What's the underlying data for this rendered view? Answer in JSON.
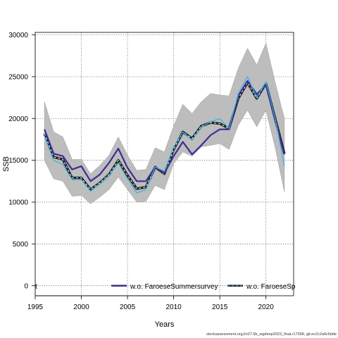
{
  "chart_data": {
    "type": "line",
    "title": "",
    "xlabel": "Years",
    "ylabel": "SSB",
    "xlim": [
      1995,
      2023
    ],
    "ylim": [
      -1200,
      30300
    ],
    "xticks": [
      1995,
      2000,
      2005,
      2010,
      2015,
      2020
    ],
    "yticks": [
      0,
      5000,
      10000,
      15000,
      20000,
      25000,
      30000
    ],
    "grid": true,
    "legend_position": "bottom",
    "legend_partial_label": "t",
    "x": [
      1996,
      1997,
      1998,
      1999,
      2000,
      2001,
      2002,
      2003,
      2004,
      2005,
      2006,
      2007,
      2008,
      2009,
      2010,
      2011,
      2012,
      2013,
      2014,
      2015,
      2016,
      2017,
      2018,
      2019,
      2020,
      2021,
      2022
    ],
    "band": {
      "name": "",
      "color": "#bdbdbd",
      "upper": [
        22000,
        18400,
        17800,
        15100,
        15100,
        13400,
        14400,
        15600,
        17800,
        15600,
        13800,
        13900,
        16500,
        16000,
        19100,
        21700,
        20600,
        22000,
        23000,
        22800,
        22700,
        26000,
        28400,
        26400,
        29000,
        24300,
        20000
      ],
      "lower": [
        15000,
        12800,
        12500,
        10700,
        10800,
        9800,
        10600,
        11500,
        13000,
        11500,
        10000,
        10100,
        12000,
        11500,
        14600,
        16000,
        15500,
        16600,
        16800,
        17000,
        16300,
        19200,
        21000,
        19000,
        21000,
        16500,
        11200
      ]
    },
    "series": [
      {
        "name": "",
        "color": "#1c1c1c",
        "style": "dashed",
        "values": [
          18200,
          15400,
          15100,
          12900,
          12900,
          11500,
          12300,
          13300,
          15000,
          13200,
          11600,
          11800,
          14200,
          13400,
          16300,
          18400,
          17600,
          19100,
          19500,
          19400,
          18800,
          22400,
          24300,
          22400,
          24200,
          20000,
          15800
        ]
      },
      {
        "name": "w.o. FaroeseSummersurvey",
        "color": "#3f2c94",
        "style": "solid",
        "values": [
          18700,
          15800,
          15500,
          13900,
          14300,
          12500,
          13300,
          14700,
          16400,
          14100,
          12500,
          12500,
          14200,
          13500,
          15500,
          17200,
          15700,
          16800,
          18000,
          18700,
          18700,
          22700,
          24500,
          22900,
          24000,
          19700,
          15700
        ]
      },
      {
        "name": "w.o. FaroeseSp",
        "color": "#33b5e5",
        "style": "solid",
        "values": [
          17900,
          15000,
          14500,
          12700,
          12700,
          11300,
          12200,
          13200,
          14700,
          12800,
          11100,
          11500,
          14200,
          13700,
          16600,
          18400,
          17400,
          19000,
          19600,
          20000,
          18800,
          23000,
          25000,
          22500,
          24400,
          20000,
          14300
        ]
      }
    ]
  },
  "footer": {
    "source_text": "stockassessment.org,lin27.5b_wgdeep2023_final,r17368, git:ec2c2a0c6dde"
  }
}
